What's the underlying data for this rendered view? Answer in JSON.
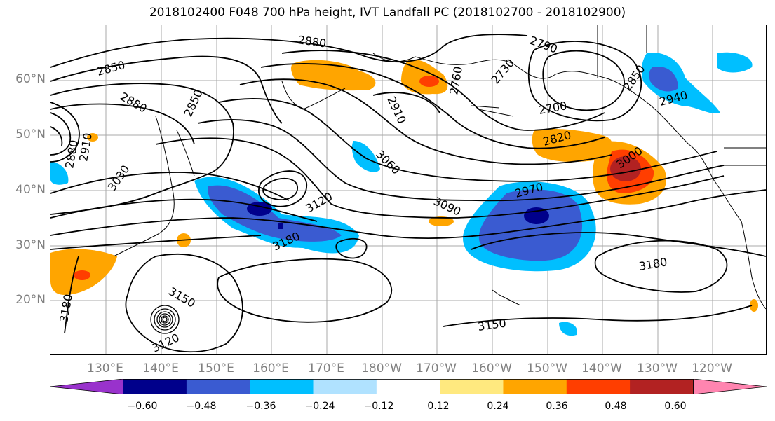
{
  "title": "2018102400 F048 700 hPa height, IVT Landfall PC (2018102700 - 2018102900)",
  "lat_labels": [
    "60°N",
    "50°N",
    "40°N",
    "30°N",
    "20°N"
  ],
  "lon_labels": [
    "130°E",
    "140°E",
    "150°E",
    "160°E",
    "170°E",
    "180°W",
    "170°W",
    "160°W",
    "150°W",
    "140°W",
    "130°W",
    "120°W"
  ],
  "contour_labels": [
    "2880",
    "2790",
    "2850",
    "2760",
    "2730",
    "2880",
    "2910",
    "2850",
    "2700",
    "2850",
    "2940",
    "2820",
    "3060",
    "3000",
    "3030",
    "2970",
    "3120",
    "3090",
    "3180",
    "3180",
    "3150",
    "3150",
    "3120",
    "3180",
    "2910",
    "2880"
  ],
  "colorbar": {
    "colors": [
      "#9932cc",
      "#00008b",
      "#3a5bd1",
      "#00bfff",
      "#b0e2ff",
      "#ffffff",
      "#ffe97f",
      "#ffa500",
      "#ff3e00",
      "#b22222",
      "#ff85b0"
    ],
    "ticks": [
      "−0.60",
      "−0.48",
      "−0.36",
      "−0.24",
      "−0.12",
      "0.12",
      "0.24",
      "0.36",
      "0.48",
      "0.60"
    ]
  },
  "colors": {
    "blue_dark": "#3a5bd1",
    "blue_navy": "#00008b",
    "blue_mid": "#00bfff",
    "orange": "#ffa500",
    "red": "#ff3e00"
  }
}
